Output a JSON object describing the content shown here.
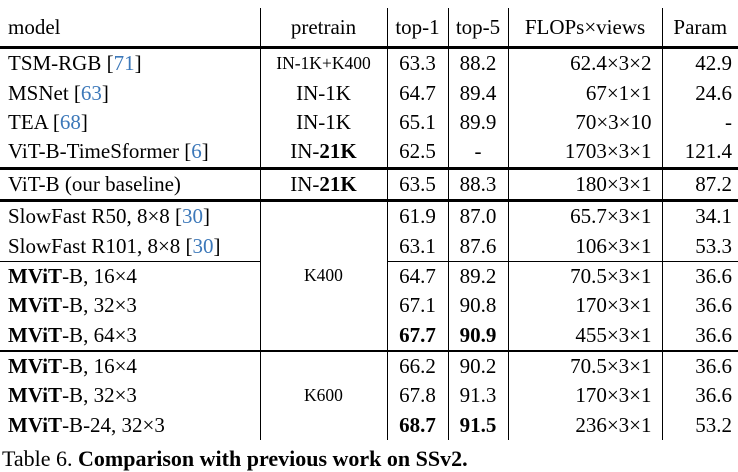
{
  "table": {
    "headers": [
      "model",
      "pretrain",
      "top-1",
      "top-5",
      "FLOPs×views",
      "Param"
    ],
    "citation_color": "#3c78b9",
    "rows": [
      {
        "model": [
          {
            "t": "TSM-RGB ["
          },
          {
            "t": "71",
            "cite": true
          },
          {
            "t": "]"
          }
        ],
        "pretrain": {
          "parts": [
            {
              "t": "IN-1K+K400"
            }
          ],
          "small": true
        },
        "top1": {
          "v": "63.3"
        },
        "top5": {
          "v": "88.2"
        },
        "flops": "62.4×3×2",
        "param": "42.9",
        "sep": ""
      },
      {
        "model": [
          {
            "t": "MSNet ["
          },
          {
            "t": "63",
            "cite": true
          },
          {
            "t": "]"
          }
        ],
        "pretrain": {
          "parts": [
            {
              "t": "IN-1K"
            }
          ]
        },
        "top1": {
          "v": "64.7"
        },
        "top5": {
          "v": "89.4"
        },
        "flops": "67×1×1",
        "param": "24.6",
        "sep": ""
      },
      {
        "model": [
          {
            "t": "TEA ["
          },
          {
            "t": "68",
            "cite": true
          },
          {
            "t": "]"
          }
        ],
        "pretrain": {
          "parts": [
            {
              "t": "IN-1K"
            }
          ]
        },
        "top1": {
          "v": "65.1"
        },
        "top5": {
          "v": "89.9"
        },
        "flops": "70×3×10",
        "param": "-",
        "sep": ""
      },
      {
        "model": [
          {
            "t": "ViT-B-TimeSformer ["
          },
          {
            "t": "6",
            "cite": true
          },
          {
            "t": "]"
          }
        ],
        "pretrain": {
          "parts": [
            {
              "t": "IN-"
            },
            {
              "t": "21K",
              "b": true
            }
          ]
        },
        "top1": {
          "v": "62.5"
        },
        "top5": {
          "v": "-"
        },
        "flops": "1703×3×1",
        "param": "121.4",
        "sep": "thick"
      },
      {
        "model": [
          {
            "t": "ViT-B (our baseline)"
          }
        ],
        "pretrain": {
          "parts": [
            {
              "t": "IN-"
            },
            {
              "t": "21K",
              "b": true
            }
          ]
        },
        "top1": {
          "v": "63.5"
        },
        "top5": {
          "v": "88.3"
        },
        "flops": "180×3×1",
        "param": "87.2",
        "sep": "thick"
      },
      {
        "model": [
          {
            "t": "SlowFast R50, 8×8 ["
          },
          {
            "t": "30",
            "cite": true
          },
          {
            "t": "]"
          }
        ],
        "pretrain": {
          "parts": [
            {
              "t": "K400"
            }
          ],
          "small": true,
          "rowspan": 5,
          "bottom_rule": true
        },
        "top1": {
          "v": "61.9"
        },
        "top5": {
          "v": "87.0"
        },
        "flops": "65.7×3×1",
        "param": "34.1",
        "sep": ""
      },
      {
        "model": [
          {
            "t": "SlowFast R101, 8×8 ["
          },
          {
            "t": "30",
            "cite": true
          },
          {
            "t": "]"
          }
        ],
        "pretrain": null,
        "top1": {
          "v": "63.1"
        },
        "top5": {
          "v": "87.6"
        },
        "flops": "106×3×1",
        "param": "53.3",
        "sep": "thin"
      },
      {
        "model": [
          {
            "t": "MViT",
            "b": true
          },
          {
            "t": "-B, 16×4"
          }
        ],
        "pretrain": null,
        "top1": {
          "v": "64.7"
        },
        "top5": {
          "v": "89.2"
        },
        "flops": "70.5×3×1",
        "param": "36.6",
        "sep": ""
      },
      {
        "model": [
          {
            "t": "MViT",
            "b": true
          },
          {
            "t": "-B, 32×3"
          }
        ],
        "pretrain": null,
        "top1": {
          "v": "67.1"
        },
        "top5": {
          "v": "90.8"
        },
        "flops": "170×3×1",
        "param": "36.6",
        "sep": ""
      },
      {
        "model": [
          {
            "t": "MViT",
            "b": true
          },
          {
            "t": "-B, 64×3"
          }
        ],
        "pretrain": null,
        "top1": {
          "v": "67.7",
          "b": true
        },
        "top5": {
          "v": "90.9",
          "b": true
        },
        "flops": "455×3×1",
        "param": "36.6",
        "sep": "mid"
      },
      {
        "model": [
          {
            "t": "MViT",
            "b": true
          },
          {
            "t": "-B, 16×4"
          }
        ],
        "pretrain": {
          "parts": [
            {
              "t": "K600"
            }
          ],
          "small": true,
          "rowspan": 3
        },
        "top1": {
          "v": "66.2"
        },
        "top5": {
          "v": "90.2"
        },
        "flops": "70.5×3×1",
        "param": "36.6",
        "sep": ""
      },
      {
        "model": [
          {
            "t": "MViT",
            "b": true
          },
          {
            "t": "-B, 32×3"
          }
        ],
        "pretrain": null,
        "top1": {
          "v": "67.8"
        },
        "top5": {
          "v": "91.3"
        },
        "flops": "170×3×1",
        "param": "36.6",
        "sep": ""
      },
      {
        "model": [
          {
            "t": "MViT",
            "b": true
          },
          {
            "t": "-B-24, 32×3"
          }
        ],
        "pretrain": null,
        "top1": {
          "v": "68.7",
          "b": true
        },
        "top5": {
          "v": "91.5",
          "b": true
        },
        "flops": "236×3×1",
        "param": "53.2",
        "sep": ""
      }
    ]
  },
  "caption": {
    "label": "Table 6. ",
    "title": "Comparison with previous work on SSv2."
  }
}
